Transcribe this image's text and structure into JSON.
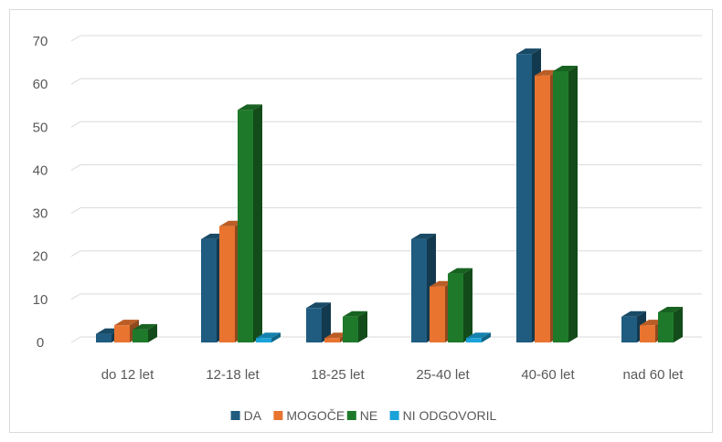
{
  "chart_data": {
    "type": "bar",
    "title": "",
    "xlabel": "",
    "ylabel": "",
    "categories": [
      "do 12 let",
      "12-18 let",
      "18-25 let",
      "25-40 let",
      "40-60 let",
      "nad 60 let"
    ],
    "series": [
      {
        "name": "DA",
        "color": "#1f5c80",
        "values": [
          2,
          24,
          8,
          24,
          67,
          6
        ]
      },
      {
        "name": "MOGOČE",
        "color": "#e87430",
        "values": [
          4,
          27,
          1,
          13,
          62,
          4
        ]
      },
      {
        "name": "NE",
        "color": "#1e7a2a",
        "values": [
          3,
          54,
          6,
          16,
          63,
          7
        ]
      },
      {
        "name": "NI ODGOVORIL",
        "color": "#1aa3d9",
        "values": [
          0,
          1,
          0,
          1,
          0,
          0
        ]
      }
    ],
    "ylim": [
      0,
      70
    ],
    "yticks": [
      0,
      10,
      20,
      30,
      40,
      50,
      60,
      70
    ],
    "grid": true,
    "legend_position": "bottom",
    "style": "3d-clustered-column"
  }
}
